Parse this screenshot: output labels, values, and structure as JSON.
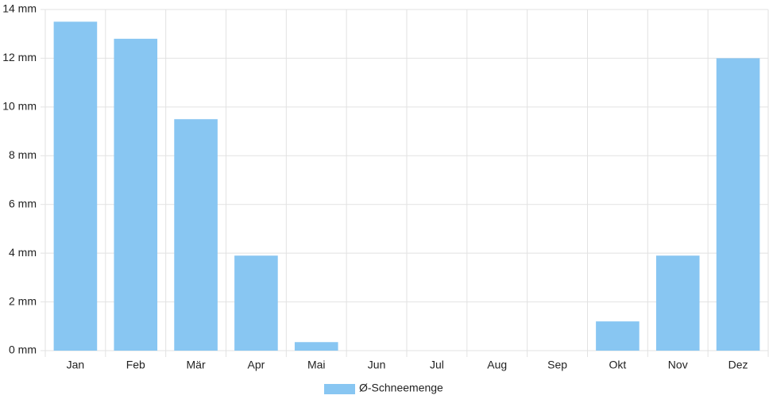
{
  "chart_data": {
    "type": "bar",
    "categories": [
      "Jan",
      "Feb",
      "Mär",
      "Apr",
      "Mai",
      "Jun",
      "Jul",
      "Aug",
      "Sep",
      "Okt",
      "Nov",
      "Dez"
    ],
    "series": [
      {
        "name": "Ø-Schneemenge",
        "color": "#88c6f2",
        "values": [
          13.5,
          12.8,
          9.5,
          3.9,
          0.35,
          0,
          0,
          0,
          0,
          1.2,
          3.9,
          12.0
        ]
      }
    ],
    "ylim": [
      0,
      14
    ],
    "yticks": [
      {
        "value": 0,
        "label": "0 mm"
      },
      {
        "value": 2,
        "label": "2 mm"
      },
      {
        "value": 4,
        "label": "4 mm"
      },
      {
        "value": 6,
        "label": "6 mm"
      },
      {
        "value": 8,
        "label": "8 mm"
      },
      {
        "value": 10,
        "label": "10 mm"
      },
      {
        "value": 12,
        "label": "12 mm"
      },
      {
        "value": 14,
        "label": "14 mm"
      }
    ],
    "grid": true,
    "legend": "bottom"
  }
}
